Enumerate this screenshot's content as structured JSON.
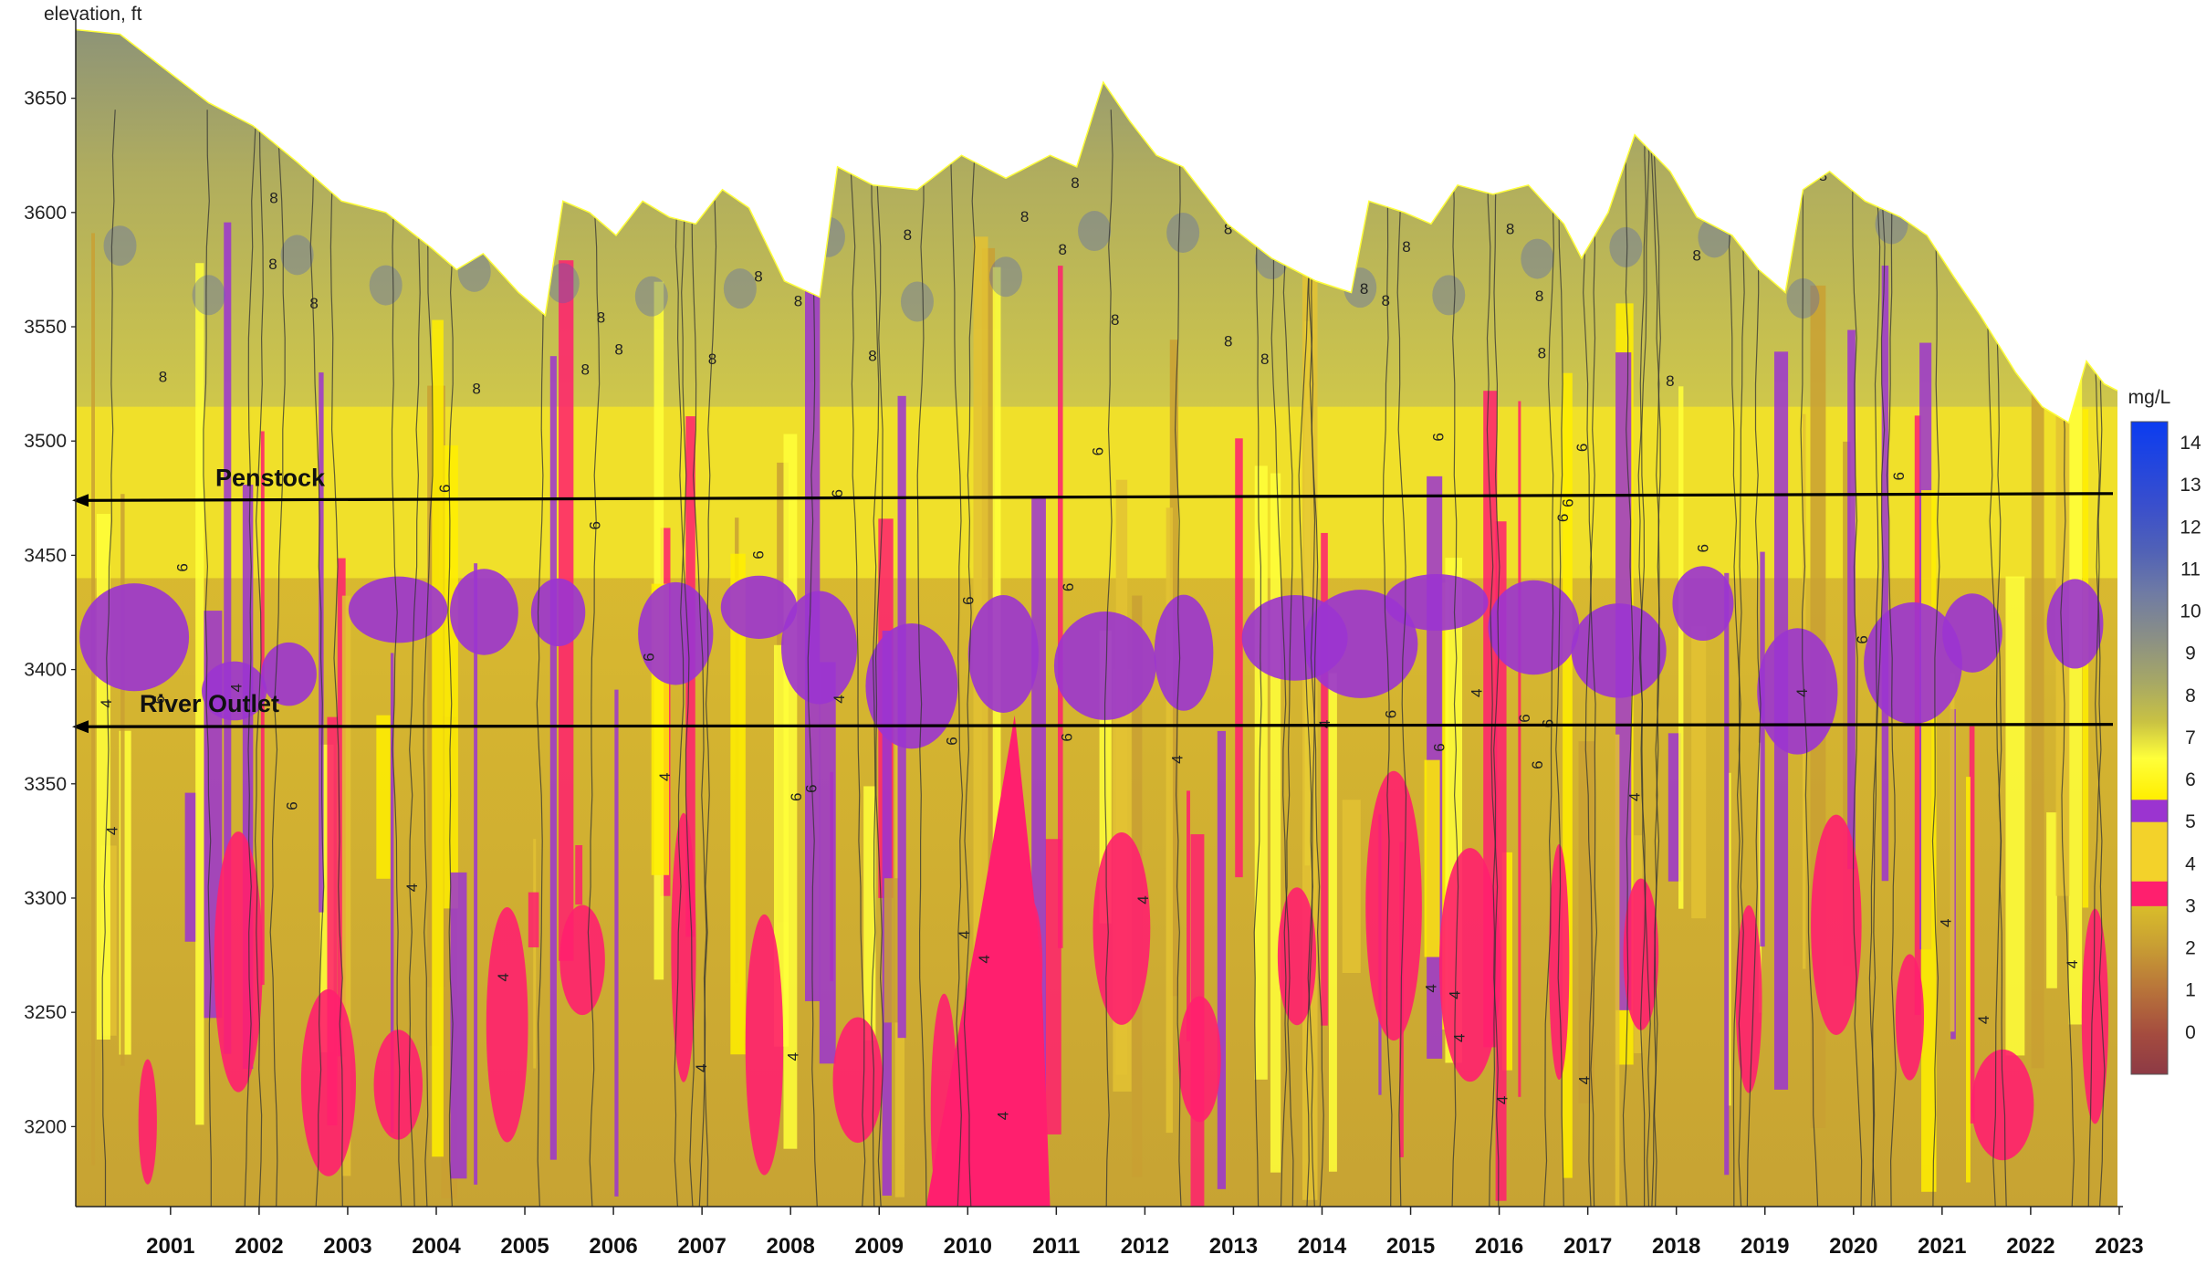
{
  "chart_data": {
    "type": "heatmap",
    "title": "",
    "ylabel": "elevation, ft",
    "xlabel": "",
    "x_ticks": [
      "2001",
      "2002",
      "2003",
      "2004",
      "2005",
      "2006",
      "2007",
      "2008",
      "2009",
      "2010",
      "2011",
      "2012",
      "2013",
      "2014",
      "2015",
      "2016",
      "2017",
      "2018",
      "2019",
      "2020",
      "2021",
      "2022",
      "2023"
    ],
    "y_ticks": [
      3200,
      3250,
      3300,
      3350,
      3400,
      3450,
      3500,
      3550,
      3600,
      3650
    ],
    "xlim": [
      2000.0,
      2023.05
    ],
    "ylim": [
      3165,
      3685
    ],
    "colorbar": {
      "unit": "mg/L",
      "ticks": [
        0,
        1,
        2,
        3,
        4,
        5,
        6,
        7,
        8,
        9,
        10,
        11,
        12,
        13,
        14
      ],
      "range": [
        -1,
        14.5
      ]
    },
    "reference_lines": [
      {
        "label": "Penstock",
        "elevation": 3474,
        "elevation_end": 3477
      },
      {
        "label": "River Outlet",
        "elevation": 3375,
        "elevation_end": 3376
      }
    ],
    "surface_elevation": [
      [
        2000.0,
        3680
      ],
      [
        2000.5,
        3678
      ],
      [
        2001.0,
        3663
      ],
      [
        2001.5,
        3648
      ],
      [
        2002.0,
        3638
      ],
      [
        2002.5,
        3622
      ],
      [
        2003.0,
        3605
      ],
      [
        2003.5,
        3600
      ],
      [
        2004.0,
        3585
      ],
      [
        2004.3,
        3575
      ],
      [
        2004.6,
        3582
      ],
      [
        2005.0,
        3565
      ],
      [
        2005.3,
        3555
      ],
      [
        2005.5,
        3605
      ],
      [
        2005.8,
        3600
      ],
      [
        2006.1,
        3590
      ],
      [
        2006.4,
        3605
      ],
      [
        2006.7,
        3598
      ],
      [
        2007.0,
        3595
      ],
      [
        2007.3,
        3610
      ],
      [
        2007.6,
        3602
      ],
      [
        2008.0,
        3570
      ],
      [
        2008.4,
        3563
      ],
      [
        2008.6,
        3620
      ],
      [
        2009.0,
        3612
      ],
      [
        2009.5,
        3610
      ],
      [
        2010.0,
        3625
      ],
      [
        2010.5,
        3615
      ],
      [
        2011.0,
        3625
      ],
      [
        2011.3,
        3620
      ],
      [
        2011.6,
        3657
      ],
      [
        2011.9,
        3640
      ],
      [
        2012.2,
        3625
      ],
      [
        2012.5,
        3620
      ],
      [
        2012.8,
        3605
      ],
      [
        2013.0,
        3595
      ],
      [
        2013.5,
        3580
      ],
      [
        2014.0,
        3570
      ],
      [
        2014.4,
        3565
      ],
      [
        2014.6,
        3605
      ],
      [
        2015.0,
        3600
      ],
      [
        2015.3,
        3595
      ],
      [
        2015.6,
        3612
      ],
      [
        2016.0,
        3608
      ],
      [
        2016.4,
        3612
      ],
      [
        2016.8,
        3595
      ],
      [
        2017.0,
        3580
      ],
      [
        2017.3,
        3600
      ],
      [
        2017.6,
        3634
      ],
      [
        2018.0,
        3618
      ],
      [
        2018.3,
        3598
      ],
      [
        2018.7,
        3590
      ],
      [
        2019.0,
        3575
      ],
      [
        2019.3,
        3565
      ],
      [
        2019.5,
        3610
      ],
      [
        2019.8,
        3618
      ],
      [
        2020.2,
        3605
      ],
      [
        2020.6,
        3598
      ],
      [
        2020.9,
        3590
      ],
      [
        2021.2,
        3572
      ],
      [
        2021.5,
        3555
      ],
      [
        2021.9,
        3530
      ],
      [
        2022.2,
        3515
      ],
      [
        2022.5,
        3508
      ],
      [
        2022.7,
        3535
      ],
      [
        2022.9,
        3525
      ],
      [
        2023.05,
        3522
      ]
    ],
    "field_description_levels": {
      "epilimnion_mean": 8,
      "metalimnion_mean": 6,
      "hypolimnion_mean": 4
    }
  }
}
